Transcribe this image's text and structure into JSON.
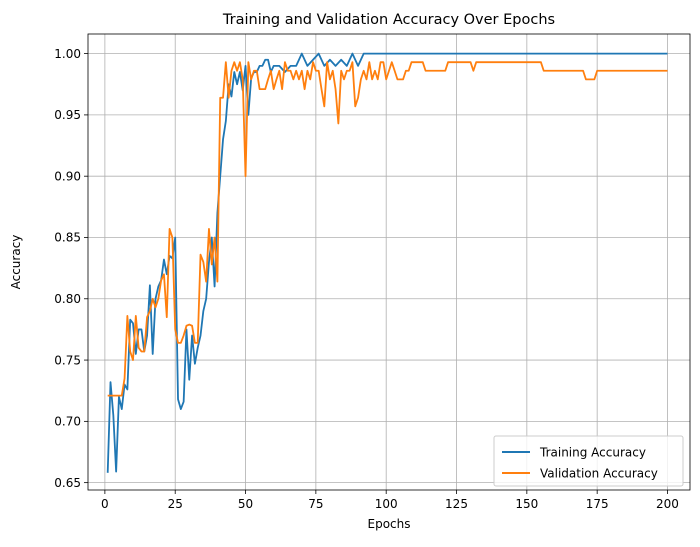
{
  "chart_data": {
    "type": "line",
    "title": "Training and Validation Accuracy Over Epochs",
    "xlabel": "Epochs",
    "ylabel": "Accuracy",
    "xlim": [
      -6,
      208
    ],
    "ylim": [
      0.644,
      1.016
    ],
    "xticks": [
      0,
      25,
      50,
      75,
      100,
      125,
      150,
      175,
      200
    ],
    "yticks": [
      0.65,
      0.7,
      0.75,
      0.8,
      0.85,
      0.9,
      0.95,
      1.0
    ],
    "ytick_labels": [
      "0.65",
      "0.70",
      "0.75",
      "0.80",
      "0.85",
      "0.90",
      "0.95",
      "1.00"
    ],
    "grid": true,
    "legend_position": "lower-right",
    "series": [
      {
        "name": "Training Accuracy",
        "color": "#1f77b4",
        "points": [
          [
            1,
            0.658
          ],
          [
            2,
            0.732
          ],
          [
            3,
            0.705
          ],
          [
            4,
            0.659
          ],
          [
            5,
            0.72
          ],
          [
            6,
            0.71
          ],
          [
            7,
            0.73
          ],
          [
            8,
            0.726
          ],
          [
            9,
            0.783
          ],
          [
            10,
            0.78
          ],
          [
            11,
            0.755
          ],
          [
            12,
            0.775
          ],
          [
            13,
            0.775
          ],
          [
            14,
            0.757
          ],
          [
            15,
            0.77
          ],
          [
            16,
            0.811
          ],
          [
            17,
            0.755
          ],
          [
            18,
            0.8
          ],
          [
            19,
            0.81
          ],
          [
            20,
            0.815
          ],
          [
            21,
            0.832
          ],
          [
            22,
            0.82
          ],
          [
            23,
            0.835
          ],
          [
            24,
            0.833
          ],
          [
            25,
            0.85
          ],
          [
            26,
            0.718
          ],
          [
            27,
            0.71
          ],
          [
            28,
            0.716
          ],
          [
            29,
            0.775
          ],
          [
            30,
            0.734
          ],
          [
            31,
            0.77
          ],
          [
            32,
            0.747
          ],
          [
            33,
            0.76
          ],
          [
            34,
            0.77
          ],
          [
            35,
            0.79
          ],
          [
            36,
            0.8
          ],
          [
            37,
            0.83
          ],
          [
            38,
            0.85
          ],
          [
            39,
            0.81
          ],
          [
            40,
            0.87
          ],
          [
            41,
            0.9
          ],
          [
            42,
            0.93
          ],
          [
            43,
            0.945
          ],
          [
            44,
            0.975
          ],
          [
            45,
            0.965
          ],
          [
            46,
            0.985
          ],
          [
            47,
            0.975
          ],
          [
            48,
            0.985
          ],
          [
            49,
            0.97
          ],
          [
            50,
            0.99
          ],
          [
            51,
            0.95
          ],
          [
            52,
            0.98
          ],
          [
            53,
            0.985
          ],
          [
            54,
            0.985
          ],
          [
            55,
            0.99
          ],
          [
            56,
            0.99
          ],
          [
            57,
            0.995
          ],
          [
            58,
            0.995
          ],
          [
            59,
            0.985
          ],
          [
            60,
            0.99
          ],
          [
            62,
            0.99
          ],
          [
            64,
            0.985
          ],
          [
            66,
            0.99
          ],
          [
            68,
            0.99
          ],
          [
            70,
            1.0
          ],
          [
            72,
            0.99
          ],
          [
            74,
            0.995
          ],
          [
            76,
            1.0
          ],
          [
            78,
            0.99
          ],
          [
            80,
            0.995
          ],
          [
            82,
            0.99
          ],
          [
            84,
            0.995
          ],
          [
            86,
            0.99
          ],
          [
            88,
            1.0
          ],
          [
            90,
            0.99
          ],
          [
            92,
            1.0
          ],
          [
            100,
            1.0
          ],
          [
            125,
            1.0
          ],
          [
            150,
            1.0
          ],
          [
            175,
            1.0
          ],
          [
            200,
            1.0
          ]
        ]
      },
      {
        "name": "Validation Accuracy",
        "color": "#ff7f0e",
        "points": [
          [
            1,
            0.721
          ],
          [
            6,
            0.721
          ],
          [
            7,
            0.735
          ],
          [
            8,
            0.786
          ],
          [
            9,
            0.757
          ],
          [
            10,
            0.75
          ],
          [
            11,
            0.786
          ],
          [
            12,
            0.76
          ],
          [
            13,
            0.757
          ],
          [
            14,
            0.757
          ],
          [
            15,
            0.785
          ],
          [
            16,
            0.79
          ],
          [
            17,
            0.8
          ],
          [
            18,
            0.793
          ],
          [
            19,
            0.8
          ],
          [
            20,
            0.815
          ],
          [
            21,
            0.82
          ],
          [
            22,
            0.785
          ],
          [
            23,
            0.857
          ],
          [
            24,
            0.85
          ],
          [
            25,
            0.775
          ],
          [
            26,
            0.764
          ],
          [
            27,
            0.764
          ],
          [
            28,
            0.77
          ],
          [
            29,
            0.778
          ],
          [
            30,
            0.779
          ],
          [
            31,
            0.778
          ],
          [
            32,
            0.764
          ],
          [
            33,
            0.764
          ],
          [
            34,
            0.836
          ],
          [
            35,
            0.83
          ],
          [
            36,
            0.814
          ],
          [
            37,
            0.857
          ],
          [
            38,
            0.828
          ],
          [
            39,
            0.85
          ],
          [
            40,
            0.814
          ],
          [
            41,
            0.964
          ],
          [
            42,
            0.964
          ],
          [
            43,
            0.993
          ],
          [
            44,
            0.964
          ],
          [
            45,
            0.986
          ],
          [
            46,
            0.993
          ],
          [
            47,
            0.986
          ],
          [
            48,
            0.993
          ],
          [
            49,
            0.979
          ],
          [
            50,
            0.9
          ],
          [
            51,
            0.993
          ],
          [
            52,
            0.979
          ],
          [
            53,
            0.986
          ],
          [
            54,
            0.986
          ],
          [
            55,
            0.971
          ],
          [
            56,
            0.971
          ],
          [
            57,
            0.971
          ],
          [
            58,
            0.979
          ],
          [
            59,
            0.986
          ],
          [
            60,
            0.971
          ],
          [
            61,
            0.979
          ],
          [
            62,
            0.986
          ],
          [
            63,
            0.971
          ],
          [
            64,
            0.993
          ],
          [
            65,
            0.986
          ],
          [
            66,
            0.986
          ],
          [
            67,
            0.979
          ],
          [
            68,
            0.986
          ],
          [
            69,
            0.979
          ],
          [
            70,
            0.986
          ],
          [
            71,
            0.971
          ],
          [
            72,
            0.986
          ],
          [
            73,
            0.979
          ],
          [
            74,
            0.993
          ],
          [
            75,
            0.986
          ],
          [
            76,
            0.986
          ],
          [
            77,
            0.971
          ],
          [
            78,
            0.957
          ],
          [
            79,
            0.993
          ],
          [
            80,
            0.979
          ],
          [
            81,
            0.986
          ],
          [
            82,
            0.971
          ],
          [
            83,
            0.943
          ],
          [
            84,
            0.986
          ],
          [
            85,
            0.979
          ],
          [
            86,
            0.986
          ],
          [
            87,
            0.986
          ],
          [
            88,
            0.993
          ],
          [
            89,
            0.957
          ],
          [
            90,
            0.964
          ],
          [
            91,
            0.979
          ],
          [
            92,
            0.986
          ],
          [
            93,
            0.979
          ],
          [
            94,
            0.993
          ],
          [
            95,
            0.979
          ],
          [
            96,
            0.986
          ],
          [
            97,
            0.979
          ],
          [
            98,
            0.993
          ],
          [
            99,
            0.993
          ],
          [
            100,
            0.979
          ],
          [
            101,
            0.986
          ],
          [
            102,
            0.993
          ],
          [
            103,
            0.986
          ],
          [
            104,
            0.979
          ],
          [
            105,
            0.979
          ],
          [
            106,
            0.979
          ],
          [
            107,
            0.986
          ],
          [
            108,
            0.986
          ],
          [
            109,
            0.993
          ],
          [
            110,
            0.993
          ],
          [
            113,
            0.993
          ],
          [
            114,
            0.986
          ],
          [
            121,
            0.986
          ],
          [
            122,
            0.993
          ],
          [
            130,
            0.993
          ],
          [
            131,
            0.986
          ],
          [
            132,
            0.993
          ],
          [
            155,
            0.993
          ],
          [
            156,
            0.986
          ],
          [
            170,
            0.986
          ],
          [
            171,
            0.979
          ],
          [
            174,
            0.979
          ],
          [
            175,
            0.986
          ],
          [
            200,
            0.986
          ]
        ]
      }
    ]
  }
}
